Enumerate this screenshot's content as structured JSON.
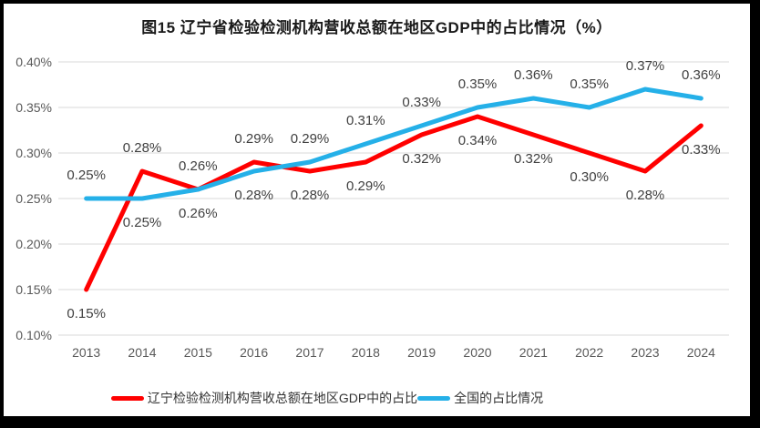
{
  "chart_data": {
    "type": "line",
    "title": "图15 辽宁省检验检测机构营收总额在地区GDP中的占比情况（%）",
    "categories": [
      "2013",
      "2014",
      "2015",
      "2016",
      "2017",
      "2018",
      "2019",
      "2020",
      "2021",
      "2022",
      "2023",
      "2024"
    ],
    "series": [
      {
        "name": "辽宁检验检测机构营收总额在地区GDP中的占比",
        "color": "#ff0000",
        "values": [
          0.15,
          0.28,
          0.26,
          0.29,
          0.28,
          0.29,
          0.32,
          0.34,
          0.32,
          0.3,
          0.28,
          0.33
        ]
      },
      {
        "name": "全国的占比情况",
        "color": "#25b0e8",
        "values": [
          0.25,
          0.25,
          0.26,
          0.28,
          0.29,
          0.31,
          0.33,
          0.35,
          0.36,
          0.35,
          0.37,
          0.36
        ]
      }
    ],
    "ylim": [
      0.1,
      0.4
    ],
    "y_ticks": [
      0.4,
      0.35,
      0.3,
      0.25,
      0.2,
      0.15,
      0.1
    ],
    "value_suffix": "%",
    "value_decimals": 2,
    "grid": "horizontal",
    "grid_color": "#d9d9d9",
    "legend_position": "bottom",
    "data_labels": true,
    "xlabel": "",
    "ylabel": ""
  }
}
